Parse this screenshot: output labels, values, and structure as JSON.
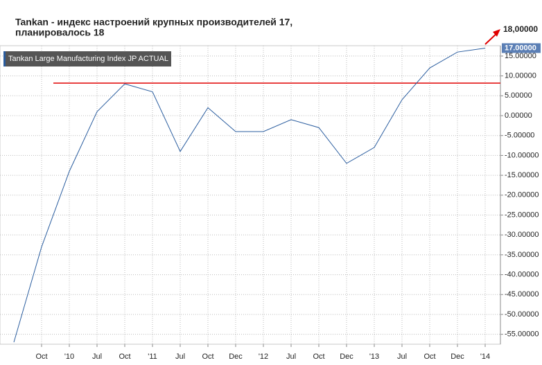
{
  "chart_data": {
    "type": "line",
    "title": "Tankan - индекс настроений крупных производителей 17,",
    "subtitle": "планировалось 18",
    "categories": [
      null,
      "Oct",
      "'10",
      "Jul",
      "Oct",
      "'11",
      "Jul",
      "Oct",
      "Dec",
      "'12",
      "Jul",
      "Oct",
      "Dec",
      "'13",
      "Jul",
      "Oct",
      "Dec",
      "'14"
    ],
    "series": [
      {
        "name": "Tankan Large Manufacturing Index JP ACTUAL",
        "color": "#2a5d9f",
        "values": [
          -57,
          -33,
          -14,
          1,
          8,
          6,
          -9,
          2,
          -4,
          -4,
          -1,
          -3,
          -12,
          -8,
          4,
          12,
          16,
          17
        ]
      }
    ],
    "ylim": [
      -57.5,
      17.6
    ],
    "yticks": [
      {
        "value": -55,
        "label": "-55.00000"
      },
      {
        "value": -50,
        "label": "-50.00000"
      },
      {
        "value": -45,
        "label": "-45.00000"
      },
      {
        "value": -40,
        "label": "-40.00000"
      },
      {
        "value": -35,
        "label": "-35.00000"
      },
      {
        "value": -30,
        "label": "-30.00000"
      },
      {
        "value": -25,
        "label": "-25.00000"
      },
      {
        "value": -20,
        "label": "-20.00000"
      },
      {
        "value": -15,
        "label": "-15.00000"
      },
      {
        "value": -10,
        "label": "-10.00000"
      },
      {
        "value": -5,
        "label": "-5.00000"
      },
      {
        "value": 0,
        "label": "0.00000"
      },
      {
        "value": 5,
        "label": "5.00000"
      },
      {
        "value": 10,
        "label": "10.00000"
      },
      {
        "value": 15,
        "label": "15.00000"
      }
    ],
    "grid": true,
    "reference_line": {
      "value": 8.2,
      "color": "#e00000"
    },
    "current_value_label": "17.00000",
    "target_label": "18,00000"
  }
}
